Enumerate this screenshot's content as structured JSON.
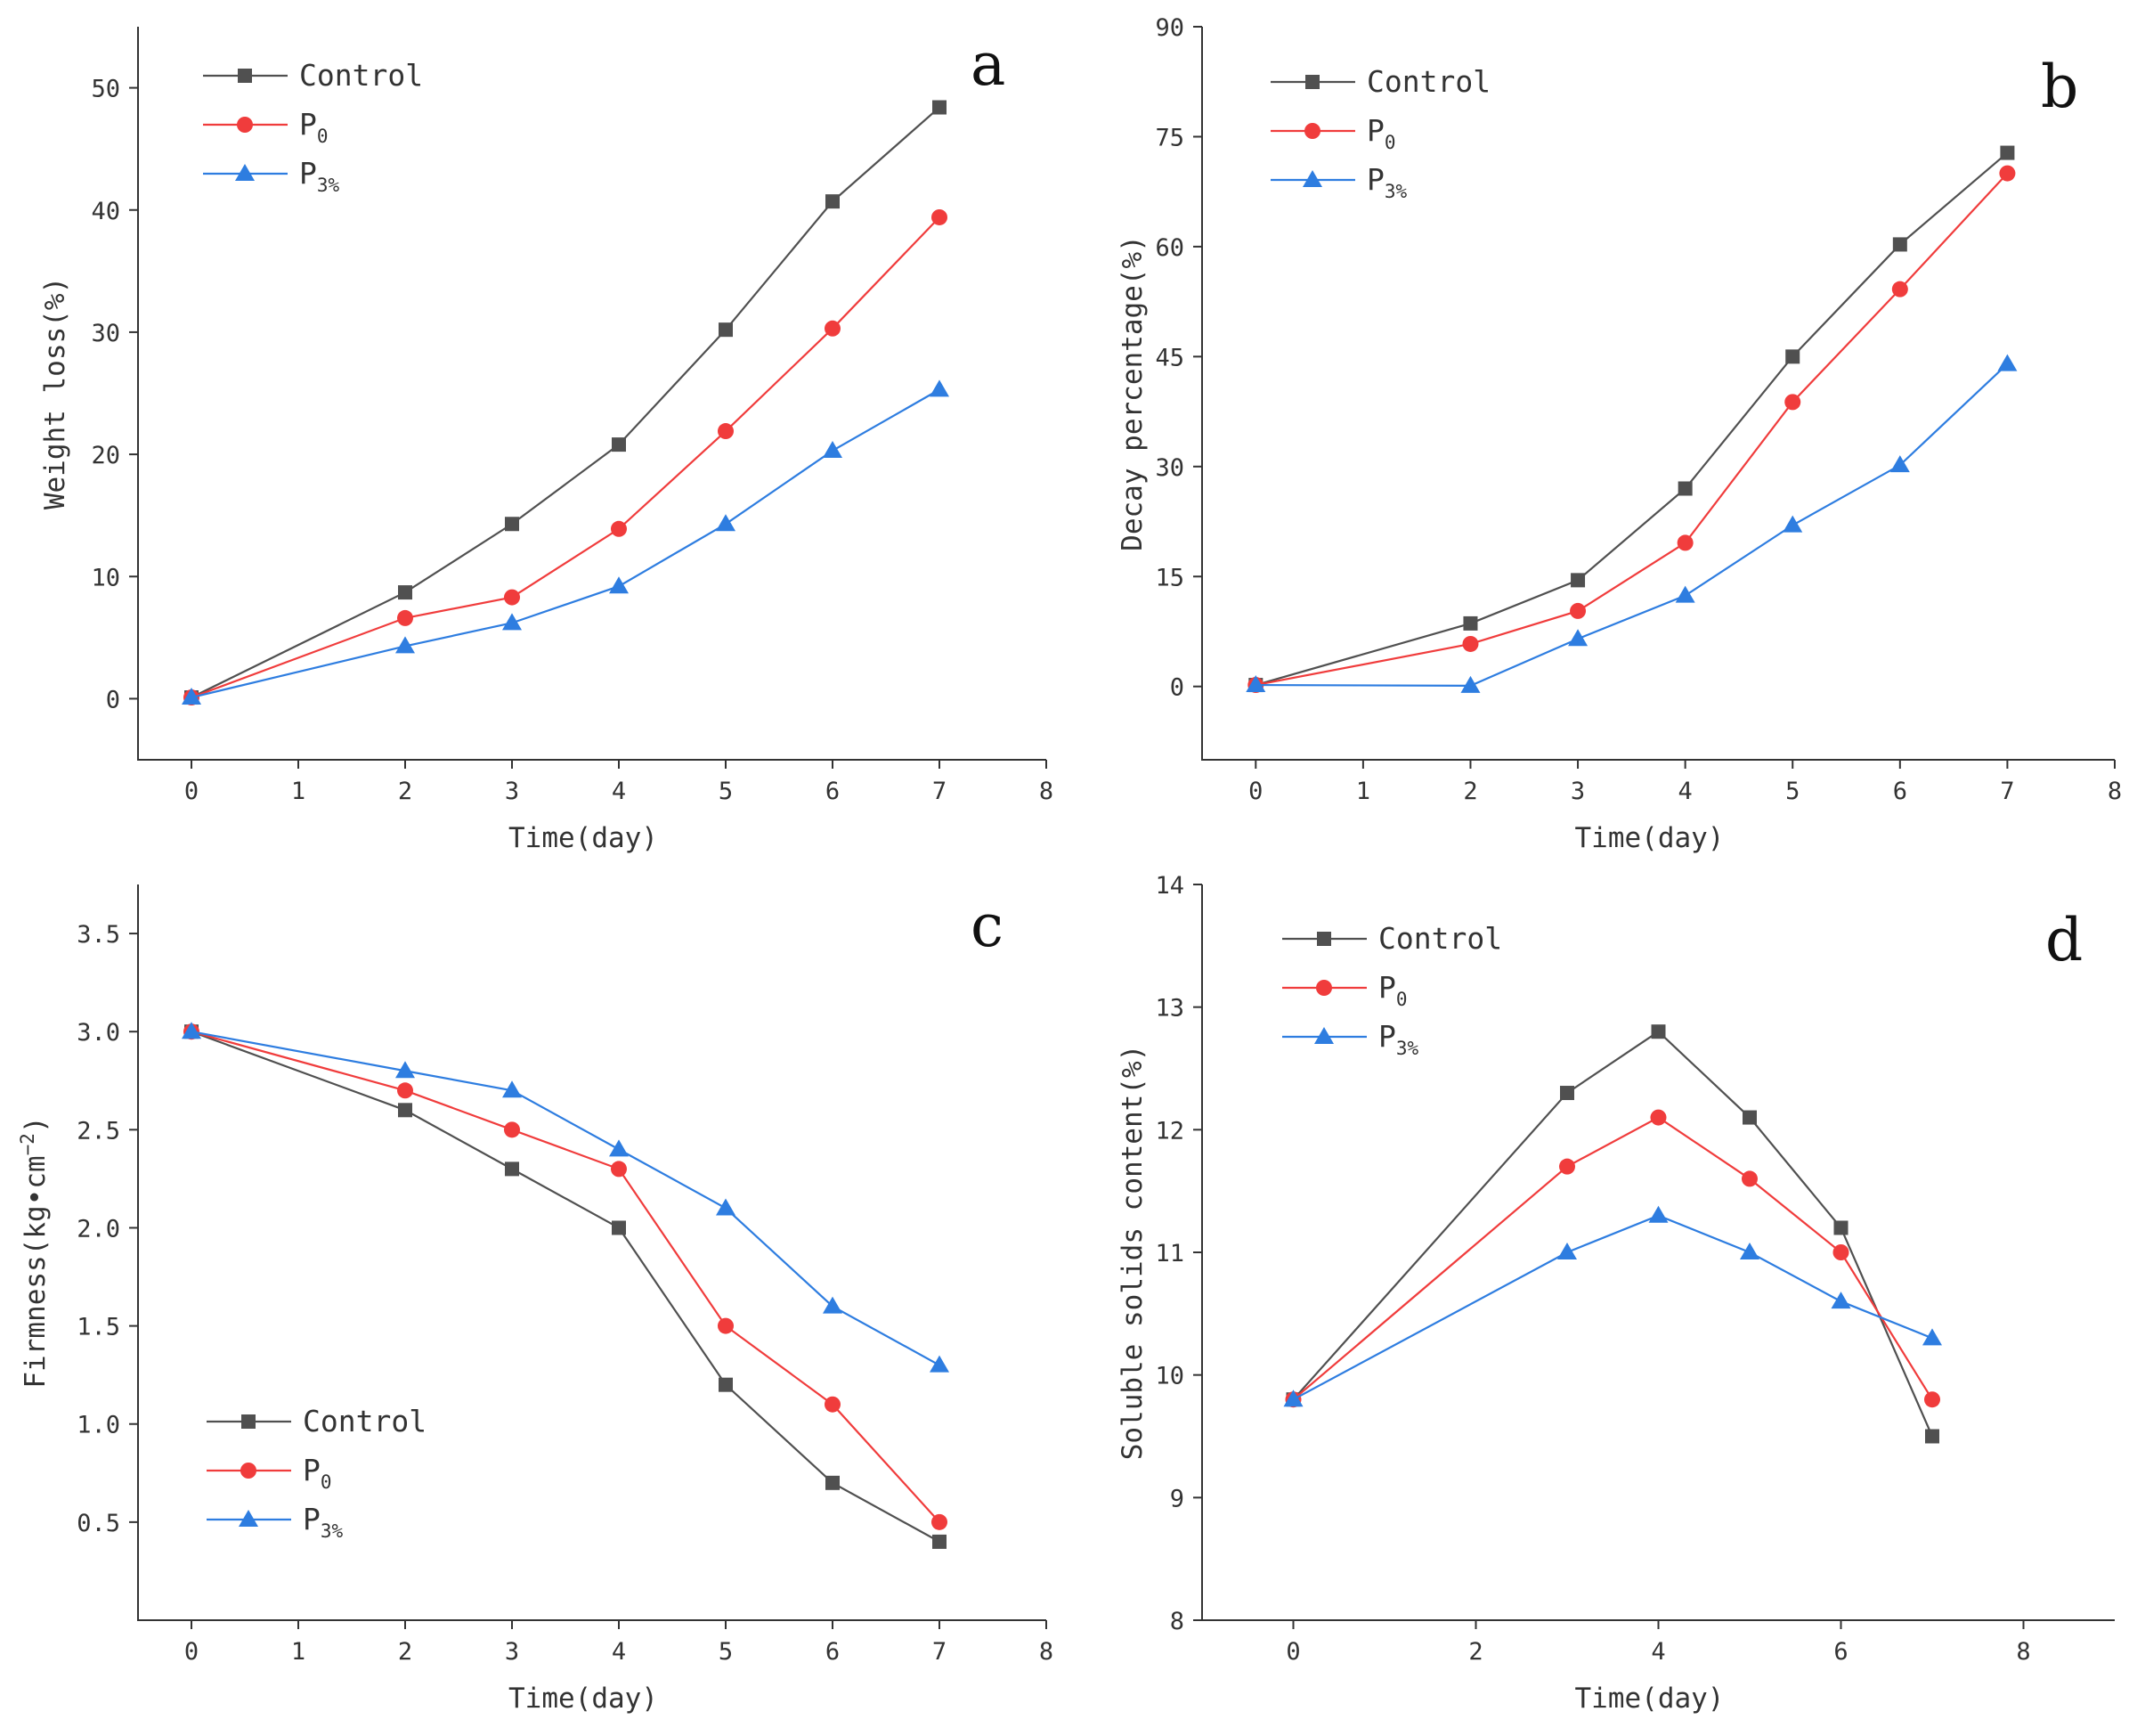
{
  "colors": {
    "control": "#505050",
    "p0": "#f03c3c",
    "p3": "#2e7de0"
  },
  "legend": {
    "control": {
      "label": "Control",
      "sub": ""
    },
    "p0": {
      "label": "P",
      "sub": "0"
    },
    "p3": {
      "label": "P",
      "sub": "3%"
    }
  },
  "chart_data": [
    {
      "id": "a",
      "type": "line",
      "panel_letter": "a",
      "xlabel": "Time(day)",
      "ylabel": "Weight loss(%)",
      "xlim": [
        -0.5,
        8
      ],
      "ylim": [
        -5,
        55
      ],
      "xticks": [
        0,
        1,
        2,
        3,
        4,
        5,
        6,
        7,
        8
      ],
      "yticks": [
        0,
        10,
        20,
        30,
        40,
        50
      ],
      "legend_position": "top-left",
      "x": [
        0,
        2,
        3,
        4,
        5,
        6,
        7
      ],
      "series": [
        {
          "key": "control",
          "name": "Control",
          "marker": "square",
          "values": [
            0.1,
            8.7,
            14.3,
            20.8,
            30.2,
            40.7,
            48.4
          ]
        },
        {
          "key": "p0",
          "name": "P0",
          "marker": "circle",
          "values": [
            0.1,
            6.6,
            8.3,
            13.9,
            21.9,
            30.3,
            39.4
          ]
        },
        {
          "key": "p3",
          "name": "P3%",
          "marker": "triangle",
          "values": [
            0.1,
            4.3,
            6.2,
            9.2,
            14.3,
            20.3,
            25.3
          ]
        }
      ]
    },
    {
      "id": "b",
      "type": "line",
      "panel_letter": "b",
      "xlabel": "Time(day)",
      "ylabel": "Decay percentage(%)",
      "xlim": [
        -0.5,
        8
      ],
      "ylim": [
        -10,
        90
      ],
      "xticks": [
        0,
        1,
        2,
        3,
        4,
        5,
        6,
        7,
        8
      ],
      "yticks": [
        0,
        15,
        30,
        45,
        60,
        75,
        90
      ],
      "legend_position": "top-left",
      "x": [
        0,
        2,
        3,
        4,
        5,
        6,
        7
      ],
      "series": [
        {
          "key": "control",
          "name": "Control",
          "marker": "square",
          "values": [
            0.2,
            8.6,
            14.5,
            27,
            45,
            60.3,
            72.8
          ]
        },
        {
          "key": "p0",
          "name": "P0",
          "marker": "circle",
          "values": [
            0.2,
            5.8,
            10.3,
            19.6,
            38.8,
            54.2,
            70
          ]
        },
        {
          "key": "p3",
          "name": "P3%",
          "marker": "triangle",
          "values": [
            0.2,
            0.1,
            6.5,
            12.4,
            22,
            30.2,
            44
          ]
        }
      ]
    },
    {
      "id": "c",
      "type": "line",
      "panel_letter": "c",
      "xlabel": "Time(day)",
      "ylabel": "Firmness(kg•cm",
      "ylabel_sup": "−2",
      "ylabel_close": ")",
      "xlim": [
        -0.5,
        8
      ],
      "ylim": [
        0,
        3.75
      ],
      "xticks": [
        0,
        1,
        2,
        3,
        4,
        5,
        6,
        7,
        8
      ],
      "yticks": [
        0.5,
        1.0,
        1.5,
        2.0,
        2.5,
        3.0,
        3.5
      ],
      "ytick_labels": [
        "0.5",
        "1.0",
        "1.5",
        "2.0",
        "2.5",
        "3.0",
        "3.5"
      ],
      "legend_position": "bottom-left",
      "x": [
        0,
        2,
        3,
        4,
        5,
        6,
        7
      ],
      "series": [
        {
          "key": "control",
          "name": "Control",
          "marker": "square",
          "values": [
            3.0,
            2.6,
            2.3,
            2.0,
            1.2,
            0.7,
            0.4
          ]
        },
        {
          "key": "p0",
          "name": "P0",
          "marker": "circle",
          "values": [
            3.0,
            2.7,
            2.5,
            2.3,
            1.5,
            1.1,
            0.5
          ]
        },
        {
          "key": "p3",
          "name": "P3%",
          "marker": "triangle",
          "values": [
            3.0,
            2.8,
            2.7,
            2.4,
            2.1,
            1.6,
            1.3
          ]
        }
      ]
    },
    {
      "id": "d",
      "type": "line",
      "panel_letter": "d",
      "xlabel": "Time(day)",
      "ylabel": "Soluble solids content(%)",
      "xlim": [
        -1,
        9
      ],
      "ylim": [
        8,
        14
      ],
      "xticks": [
        0,
        2,
        4,
        6,
        8
      ],
      "yticks": [
        8,
        9,
        10,
        11,
        12,
        13,
        14
      ],
      "legend_position": "top-left",
      "x": [
        0,
        3,
        4,
        5,
        6,
        7
      ],
      "series": [
        {
          "key": "control",
          "name": "Control",
          "marker": "square",
          "values": [
            9.8,
            12.3,
            12.8,
            12.1,
            11.2,
            9.5
          ]
        },
        {
          "key": "p0",
          "name": "P0",
          "marker": "circle",
          "values": [
            9.8,
            11.7,
            12.1,
            11.6,
            11.0,
            9.8
          ]
        },
        {
          "key": "p3",
          "name": "P3%",
          "marker": "triangle",
          "values": [
            9.8,
            11.0,
            11.3,
            11.0,
            10.6,
            10.3
          ]
        }
      ]
    }
  ]
}
